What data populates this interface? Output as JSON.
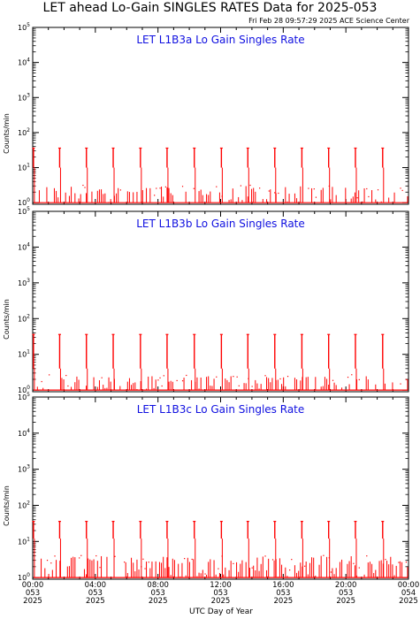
{
  "header": {
    "title": "LET ahead Lo-Gain SINGLES RATES Data for 2025-053",
    "timestamp": "Fri Feb 28 09:57:29 2025 ACE Science Center"
  },
  "colors": {
    "data": "#ff0000",
    "panel_title": "#1010e0",
    "axis": "#000000"
  },
  "chart_data": [
    {
      "type": "line",
      "title": "LET L1B3a Lo Gain Singles Rate",
      "xlabel": "",
      "ylabel": "Counts/min",
      "yscale": "log",
      "ylim": [
        0.9,
        100000
      ],
      "xlim": [
        0,
        24
      ],
      "y_tick_labels": [
        "10^0",
        "10^1",
        "10^2",
        "10^3",
        "10^4",
        "10^5"
      ],
      "spikes_x": [
        0.05,
        1.72,
        3.43,
        5.14,
        6.88,
        8.58,
        10.32,
        12.05,
        13.74,
        15.46,
        17.19,
        18.9,
        20.61,
        22.35
      ],
      "spike_height": 36,
      "spike_base": 10,
      "baseline": 1,
      "noise_level": 2
    },
    {
      "type": "line",
      "title": "LET L1B3b Lo Gain Singles Rate",
      "xlabel": "",
      "ylabel": "Counts/min",
      "yscale": "log",
      "ylim": [
        0.9,
        100000
      ],
      "xlim": [
        0,
        24
      ],
      "y_tick_labels": [
        "10^0",
        "10^1",
        "10^2",
        "10^3",
        "10^4",
        "10^5"
      ],
      "spikes_x": [
        0.05,
        1.72,
        3.43,
        5.14,
        6.88,
        8.58,
        10.32,
        12.05,
        13.74,
        15.46,
        17.19,
        18.9,
        20.61,
        22.35
      ],
      "spike_height": 36,
      "spike_base": 4,
      "baseline": 1,
      "noise_level": 1.5
    },
    {
      "type": "line",
      "title": "LET L1B3c Lo Gain Singles Rate",
      "xlabel": "UTC Day of Year",
      "ylabel": "Counts/min",
      "yscale": "log",
      "ylim": [
        0.9,
        100000
      ],
      "xlim": [
        0,
        24
      ],
      "y_tick_labels": [
        "10^0",
        "10^1",
        "10^2",
        "10^3",
        "10^4",
        "10^5"
      ],
      "x_ticks": [
        {
          "x": 0,
          "time": "00:00",
          "day": "053",
          "year": "2025"
        },
        {
          "x": 4,
          "time": "04:00",
          "day": "053",
          "year": "2025"
        },
        {
          "x": 8,
          "time": "08:00",
          "day": "053",
          "year": "2025"
        },
        {
          "x": 12,
          "time": "12:00",
          "day": "053",
          "year": "2025"
        },
        {
          "x": 16,
          "time": "16:00",
          "day": "053",
          "year": "2025"
        },
        {
          "x": 20,
          "time": "20:00",
          "day": "053",
          "year": "2025"
        },
        {
          "x": 24,
          "time": "00:00",
          "day": "054",
          "year": "2025"
        }
      ],
      "spikes_x": [
        0.05,
        1.72,
        3.43,
        5.14,
        6.88,
        8.58,
        10.32,
        12.05,
        13.74,
        15.46,
        17.19,
        18.9,
        20.61,
        22.35
      ],
      "spike_height": 36,
      "spike_base": 12,
      "baseline": 1,
      "noise_level": 3
    }
  ]
}
